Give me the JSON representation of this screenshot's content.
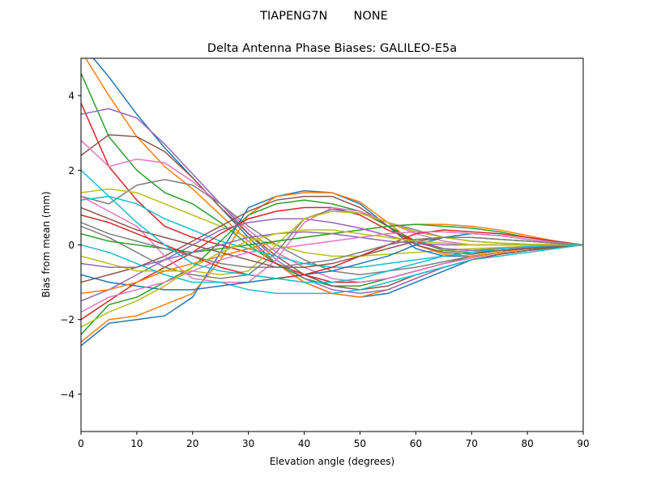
{
  "chart_data": {
    "type": "line",
    "suptitle": "TIAPENG7N       NONE",
    "title": "Delta Antenna Phase Biases: GALILEO-E5a",
    "xlabel": "Elevation angle (degrees)",
    "ylabel": "Bias from mean (mm)",
    "xlim": [
      0,
      90
    ],
    "ylim": [
      -5,
      5
    ],
    "xticks": [
      0,
      10,
      20,
      30,
      40,
      50,
      60,
      70,
      80,
      90
    ],
    "yticks": [
      -4,
      -2,
      0,
      2,
      4
    ],
    "ytick_labels": [
      "−4",
      "−2",
      "0",
      "2",
      "4"
    ],
    "grid": false,
    "colors": [
      "#1f77b4",
      "#ff7f0e",
      "#2ca02c",
      "#d62728",
      "#9467bd",
      "#8c564b",
      "#e377c2",
      "#7f7f7f",
      "#bcbd22",
      "#17becf"
    ],
    "x": [
      0,
      5,
      10,
      15,
      20,
      25,
      30,
      35,
      40,
      45,
      50,
      55,
      60,
      65,
      70,
      75,
      80,
      85,
      90
    ],
    "series": [
      [
        5.4,
        4.5,
        3.5,
        2.6,
        1.8,
        1.0,
        0.2,
        -0.5,
        -1.0,
        -1.3,
        -1.4,
        -1.3,
        -1.0,
        -0.7,
        -0.4,
        -0.25,
        -0.15,
        -0.07,
        0
      ],
      [
        5.2,
        4.0,
        2.9,
        2.1,
        1.5,
        0.8,
        0.1,
        -0.5,
        -1.0,
        -1.3,
        -1.4,
        -1.2,
        -0.9,
        -0.6,
        -0.4,
        -0.25,
        -0.15,
        -0.07,
        0
      ],
      [
        4.6,
        2.9,
        2.0,
        1.4,
        1.1,
        0.6,
        0.0,
        -0.5,
        -0.9,
        -1.1,
        -1.1,
        -0.9,
        -0.7,
        -0.5,
        -0.3,
        -0.2,
        -0.1,
        -0.05,
        0
      ],
      [
        3.8,
        2.1,
        1.2,
        0.5,
        0.2,
        0.0,
        -0.2,
        -0.5,
        -0.8,
        -1.0,
        -1.0,
        -0.9,
        -0.7,
        -0.5,
        -0.35,
        -0.2,
        -0.1,
        -0.05,
        0
      ],
      [
        3.5,
        3.65,
        3.4,
        2.7,
        1.9,
        1.1,
        0.3,
        -0.4,
        -0.9,
        -1.2,
        -1.3,
        -1.2,
        -0.9,
        -0.6,
        -0.4,
        -0.25,
        -0.15,
        -0.07,
        0
      ],
      [
        2.4,
        2.95,
        2.9,
        2.5,
        1.8,
        1.0,
        0.3,
        -0.3,
        -0.8,
        -1.1,
        -1.2,
        -1.1,
        -0.8,
        -0.6,
        -0.4,
        -0.25,
        -0.15,
        -0.07,
        0
      ],
      [
        2.8,
        2.1,
        2.3,
        2.2,
        1.7,
        1.1,
        0.4,
        -0.2,
        -0.6,
        -0.9,
        -1.0,
        -0.9,
        -0.7,
        -0.5,
        -0.35,
        -0.2,
        -0.1,
        -0.05,
        0
      ],
      [
        1.3,
        1.1,
        1.6,
        1.75,
        1.6,
        1.1,
        0.5,
        0.0,
        -0.4,
        -0.7,
        -0.8,
        -0.7,
        -0.6,
        -0.45,
        -0.3,
        -0.2,
        -0.1,
        -0.05,
        0
      ],
      [
        1.4,
        1.5,
        1.4,
        1.1,
        0.8,
        0.5,
        0.2,
        0.0,
        -0.2,
        -0.3,
        -0.3,
        -0.25,
        -0.2,
        -0.15,
        -0.1,
        -0.07,
        -0.04,
        -0.02,
        0
      ],
      [
        1.2,
        1.3,
        1.1,
        0.7,
        0.4,
        0.1,
        -0.1,
        -0.3,
        -0.5,
        -0.6,
        -0.6,
        -0.5,
        -0.4,
        -0.3,
        -0.2,
        -0.15,
        -0.1,
        -0.05,
        0
      ],
      [
        -2.7,
        -2.1,
        -2.0,
        -1.9,
        -1.4,
        -0.2,
        1.0,
        1.3,
        1.45,
        1.4,
        1.1,
        0.5,
        -0.1,
        -0.3,
        -0.3,
        -0.2,
        -0.1,
        -0.05,
        0
      ],
      [
        -2.6,
        -2.0,
        -1.9,
        -1.6,
        -1.3,
        -0.4,
        0.8,
        1.3,
        1.4,
        1.4,
        1.15,
        0.6,
        0.0,
        -0.25,
        -0.3,
        -0.2,
        -0.1,
        -0.05,
        0
      ],
      [
        -2.4,
        -1.6,
        -1.4,
        -1.0,
        -0.6,
        0.1,
        0.8,
        1.1,
        1.2,
        1.1,
        0.9,
        0.5,
        0.1,
        -0.15,
        -0.2,
        -0.15,
        -0.1,
        -0.05,
        0
      ],
      [
        -2.0,
        -1.5,
        -1.0,
        -0.6,
        -0.2,
        0.3,
        0.7,
        0.9,
        1.0,
        1.0,
        0.8,
        0.4,
        0.1,
        -0.1,
        -0.15,
        -0.1,
        -0.07,
        -0.03,
        0
      ],
      [
        -1.5,
        -1.2,
        -0.8,
        -0.4,
        0.0,
        0.4,
        0.6,
        0.7,
        0.7,
        0.6,
        0.45,
        0.25,
        0.05,
        -0.1,
        -0.15,
        -0.1,
        -0.07,
        -0.03,
        0
      ],
      [
        -1.0,
        -0.8,
        -0.6,
        -0.3,
        0.1,
        0.5,
        0.9,
        1.2,
        1.3,
        1.3,
        1.0,
        0.5,
        0.0,
        -0.2,
        -0.25,
        -0.15,
        -0.1,
        -0.05,
        0
      ],
      [
        1.3,
        0.9,
        0.5,
        -0.3,
        -0.9,
        -1.0,
        -1.0,
        -0.4,
        0.6,
        1.0,
        0.9,
        0.6,
        0.3,
        0.1,
        0.0,
        0.0,
        0.0,
        0.0,
        0
      ],
      [
        0.5,
        0.2,
        -0.2,
        -0.6,
        -0.8,
        -0.9,
        -0.8,
        -0.2,
        0.7,
        0.95,
        0.85,
        0.6,
        0.4,
        0.2,
        0.1,
        0.05,
        0.02,
        0.01,
        0
      ],
      [
        -0.3,
        -0.5,
        -0.7,
        -0.7,
        -0.7,
        -0.8,
        -0.7,
        0.0,
        0.7,
        0.9,
        0.85,
        0.6,
        0.35,
        0.2,
        0.1,
        0.05,
        0.02,
        0.01,
        0
      ],
      [
        0.0,
        -0.2,
        -0.5,
        -0.8,
        -1.0,
        -1.0,
        -1.2,
        -1.3,
        -1.3,
        -1.3,
        -1.2,
        -1.0,
        -0.8,
        -0.6,
        -0.4,
        -0.3,
        -0.2,
        -0.1,
        0
      ],
      [
        -0.8,
        -1.0,
        -1.1,
        -1.2,
        -1.2,
        -1.1,
        -1.0,
        -0.9,
        -0.8,
        -0.7,
        -0.5,
        -0.3,
        0.0,
        0.2,
        0.3,
        0.25,
        0.15,
        0.07,
        0
      ],
      [
        -1.3,
        -1.2,
        -1.0,
        -0.7,
        -0.5,
        -0.3,
        -0.1,
        0.1,
        0.2,
        0.3,
        0.4,
        0.5,
        0.55,
        0.55,
        0.5,
        0.4,
        0.25,
        0.1,
        0
      ],
      [
        0.3,
        0.1,
        0.0,
        -0.1,
        -0.2,
        -0.1,
        0.0,
        0.1,
        0.2,
        0.3,
        0.4,
        0.5,
        0.55,
        0.5,
        0.45,
        0.35,
        0.2,
        0.1,
        0
      ],
      [
        0.8,
        0.6,
        0.3,
        0.0,
        -0.3,
        -0.6,
        -0.8,
        -0.9,
        -0.8,
        -0.6,
        -0.3,
        0.0,
        0.3,
        0.4,
        0.35,
        0.3,
        0.2,
        0.1,
        0
      ],
      [
        -0.5,
        -0.6,
        -0.6,
        -0.4,
        -0.2,
        0.0,
        0.2,
        0.3,
        0.35,
        0.3,
        0.2,
        0.1,
        0.05,
        0.0,
        0.0,
        0.0,
        0.0,
        0.0,
        0
      ],
      [
        1.0,
        0.7,
        0.4,
        0.2,
        0.0,
        -0.2,
        -0.4,
        -0.6,
        -0.6,
        -0.5,
        -0.3,
        -0.1,
        0.1,
        0.2,
        0.2,
        0.15,
        0.1,
        0.05,
        0
      ],
      [
        -1.8,
        -1.4,
        -1.2,
        -1.0,
        -0.7,
        -0.4,
        -0.2,
        -0.1,
        0.0,
        0.1,
        0.2,
        0.3,
        0.35,
        0.35,
        0.3,
        0.25,
        0.15,
        0.07,
        0
      ],
      [
        0.6,
        0.3,
        0.1,
        -0.1,
        -0.3,
        -0.5,
        -0.6,
        -0.6,
        -0.5,
        -0.4,
        -0.2,
        0.0,
        0.15,
        0.2,
        0.2,
        0.15,
        0.1,
        0.05,
        0
      ],
      [
        -2.2,
        -1.8,
        -1.5,
        -1.1,
        -0.6,
        -0.2,
        0.1,
        0.3,
        0.4,
        0.4,
        0.3,
        0.2,
        0.1,
        0.05,
        0.0,
        0.0,
        0.0,
        0.0,
        0
      ],
      [
        2.0,
        1.3,
        0.6,
        0.0,
        -0.5,
        -0.7,
        -0.8,
        -0.9,
        -1.0,
        -1.0,
        -0.9,
        -0.7,
        -0.5,
        -0.3,
        -0.2,
        -0.1,
        -0.05,
        -0.02,
        0
      ]
    ]
  }
}
